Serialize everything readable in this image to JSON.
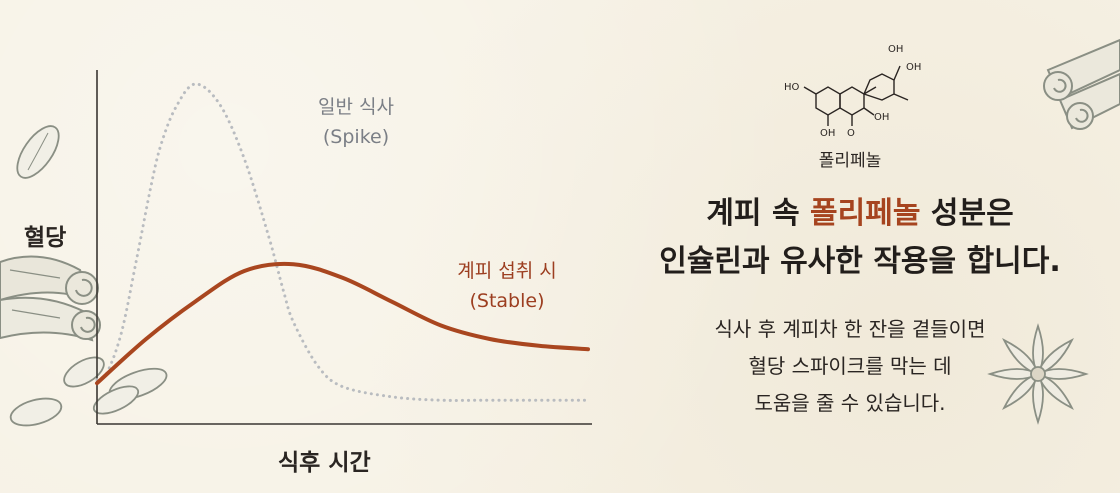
{
  "chart_data": {
    "type": "line",
    "xlabel": "식후 시간",
    "ylabel": "혈당",
    "series": [
      {
        "name": "일반 식사 (Spike)",
        "label_line1": "일반 식사",
        "label_line2": "(Spike)",
        "style": "dotted",
        "color": "#b9bcc0",
        "x": [
          0,
          2,
          5,
          8,
          11,
          13,
          16,
          20,
          25,
          30,
          35,
          38,
          40,
          45,
          50,
          60,
          70,
          80,
          100
        ],
        "y": [
          13,
          15,
          27,
          48,
          70,
          82,
          93,
          100,
          94,
          78,
          55,
          39,
          30,
          17,
          11,
          8,
          7,
          7,
          7
        ]
      },
      {
        "name": "계피 섭취 시 (Stable)",
        "label_line1": "계피 섭취 시",
        "label_line2": "(Stable)",
        "style": "solid",
        "color": "#a9461f",
        "x": [
          0,
          10,
          20,
          30,
          40,
          50,
          60,
          70,
          80,
          90,
          100
        ],
        "y": [
          12,
          25,
          36,
          45,
          47,
          43,
          36,
          29,
          25,
          23,
          22
        ]
      }
    ]
  },
  "molecule": {
    "caption": "폴리페놀",
    "substituents": [
      "OH",
      "OH",
      "HO",
      "OH",
      "OH",
      "O"
    ]
  },
  "headline": {
    "line1_prefix": "계피 속 ",
    "line1_accent": "폴리페놀",
    "line1_suffix": " 성분은",
    "line2": "인슐린과 유사한 작용을 합니다."
  },
  "body": {
    "line1": "식사 후 계피차 한 잔을 곁들이면",
    "line2": "혈당 스파이크를 막는 데",
    "line3": "도움을 줄 수 있습니다."
  },
  "colors": {
    "background": "#f6f1e4",
    "accent": "#a6441f",
    "spike": "#b9bcc0",
    "stable": "#a9461f"
  }
}
